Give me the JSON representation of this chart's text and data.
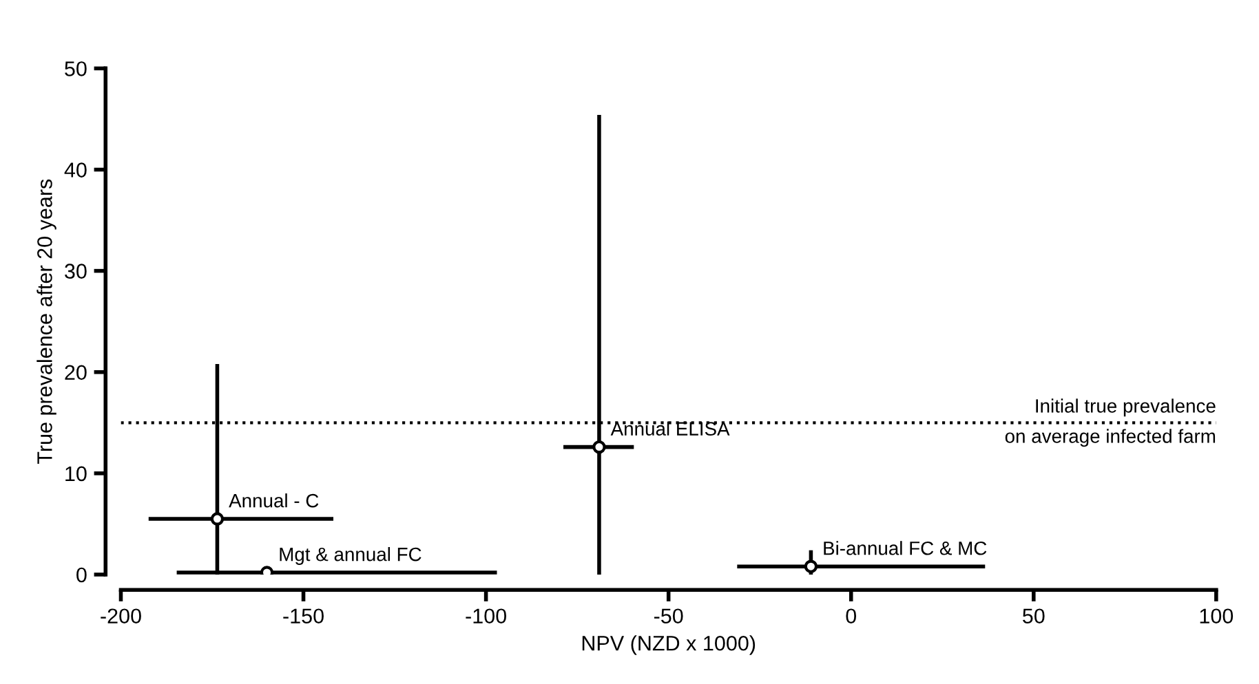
{
  "chart_data": {
    "type": "scatter",
    "xlabel": "NPV (NZD x 1000)",
    "ylabel": "True prevalence after 20 years",
    "x": [
      -173.6,
      -160,
      -69,
      -11
    ],
    "series": [
      {
        "color": "#000000",
        "values": [
          5.5,
          0.2,
          12.6,
          0.8
        ],
        "xerrors": [
          [
            -192.4,
            -141.8
          ],
          [
            -184.7,
            -97
          ],
          [
            -78.8,
            -59.5
          ],
          [
            -31.2,
            36.7
          ]
        ],
        "errors": [
          [
            0,
            20.8
          ],
          null,
          [
            0,
            45.4
          ],
          [
            0,
            2.4
          ]
        ]
      }
    ],
    "xlim": [
      -200,
      100
    ],
    "ylim": [
      0,
      50
    ],
    "xticks": [
      -200,
      -150,
      -100,
      -50,
      0,
      50,
      100
    ],
    "yticks": [
      0,
      10,
      20,
      30,
      40,
      50
    ],
    "marker": "circle",
    "grid": false,
    "legend": false,
    "ref_lines": [
      {
        "axis": "y",
        "value": 15,
        "label": "Initial true prevalence\non average infected farm",
        "line_style": "dotted",
        "color": "#000000"
      }
    ],
    "annotations": [
      {
        "text": "Annual - C",
        "x": -173.6,
        "y": 5.5
      },
      {
        "text": "Mgt & annual FC",
        "x": -160,
        "y": 0.2
      },
      {
        "text": "Annual ELISA",
        "x": -69,
        "y": 12.6
      },
      {
        "text": "Bi-annual FC & MC",
        "x": -11,
        "y": 0.8
      }
    ]
  }
}
